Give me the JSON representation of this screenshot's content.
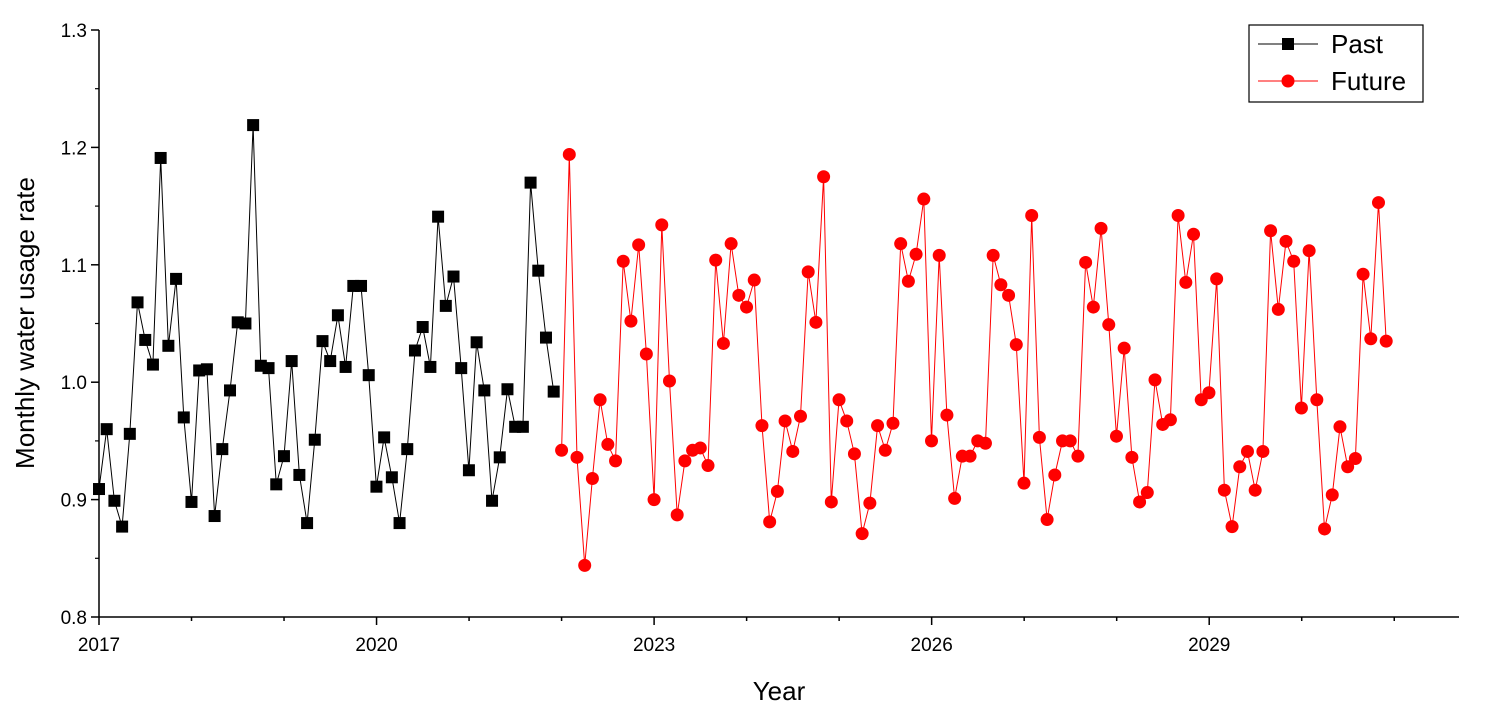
{
  "chart_data": {
    "type": "line",
    "title": "",
    "xlabel": "Year",
    "ylabel": "Monthly water usage rate",
    "xlim": [
      2017,
      2031.7
    ],
    "ylim": [
      0.8,
      1.3
    ],
    "x_ticks": [
      "2017",
      "2020",
      "2023",
      "2026",
      "2029"
    ],
    "y_ticks": [
      "0.8",
      "0.9",
      "1.0",
      "1.1",
      "1.2",
      "1.3"
    ],
    "legend_position": "top-right",
    "series": [
      {
        "name": "Past",
        "color": "#000000",
        "marker": "square",
        "x_start": 2017,
        "x_step": 0.0833,
        "values": [
          0.909,
          0.96,
          0.899,
          0.877,
          0.956,
          1.068,
          1.036,
          1.015,
          1.191,
          1.031,
          1.088,
          0.97,
          0.898,
          1.01,
          1.011,
          0.886,
          0.943,
          0.993,
          1.051,
          1.05,
          1.219,
          1.014,
          1.012,
          0.913,
          0.937,
          1.018,
          0.921,
          0.88,
          0.951,
          1.035,
          1.018,
          1.057,
          1.013,
          1.082,
          1.082,
          1.006,
          0.911,
          0.953,
          0.919,
          0.88,
          0.943,
          1.027,
          1.047,
          1.013,
          1.141,
          1.065,
          1.09,
          1.012,
          0.925,
          1.034,
          0.993,
          0.899,
          0.936,
          0.994,
          0.962,
          0.962,
          1.17,
          1.095,
          1.038,
          0.992
        ]
      },
      {
        "name": "Future",
        "color": "#ff0000",
        "marker": "circle",
        "x_start": 2022,
        "x_step": 0.0833,
        "values": [
          0.942,
          1.194,
          0.936,
          0.844,
          0.918,
          0.985,
          0.947,
          0.933,
          1.103,
          1.052,
          1.117,
          1.024,
          0.9,
          1.134,
          1.001,
          0.887,
          0.933,
          0.942,
          0.944,
          0.929,
          1.104,
          1.033,
          1.118,
          1.074,
          1.064,
          1.087,
          0.963,
          0.881,
          0.907,
          0.967,
          0.941,
          0.971,
          1.094,
          1.051,
          1.175,
          0.898,
          0.985,
          0.967,
          0.939,
          0.871,
          0.897,
          0.963,
          0.942,
          0.965,
          1.118,
          1.086,
          1.109,
          1.156,
          0.95,
          1.108,
          0.972,
          0.901,
          0.937,
          0.937,
          0.95,
          0.948,
          1.108,
          1.083,
          1.074,
          1.032,
          0.914,
          1.142,
          0.953,
          0.883,
          0.921,
          0.95,
          0.95,
          0.937,
          1.102,
          1.064,
          1.131,
          1.049,
          0.954,
          1.029,
          0.936,
          0.898,
          0.906,
          1.002,
          0.964,
          0.968,
          1.142,
          1.085,
          1.126,
          0.985,
          0.991,
          1.088,
          0.908,
          0.877,
          0.928,
          0.941,
          0.908,
          0.941,
          1.129,
          1.062,
          1.12,
          1.103,
          0.978,
          1.112,
          0.985,
          0.875,
          0.904,
          0.962,
          0.928,
          0.935,
          1.092,
          1.037,
          1.153,
          1.035
        ]
      }
    ]
  }
}
